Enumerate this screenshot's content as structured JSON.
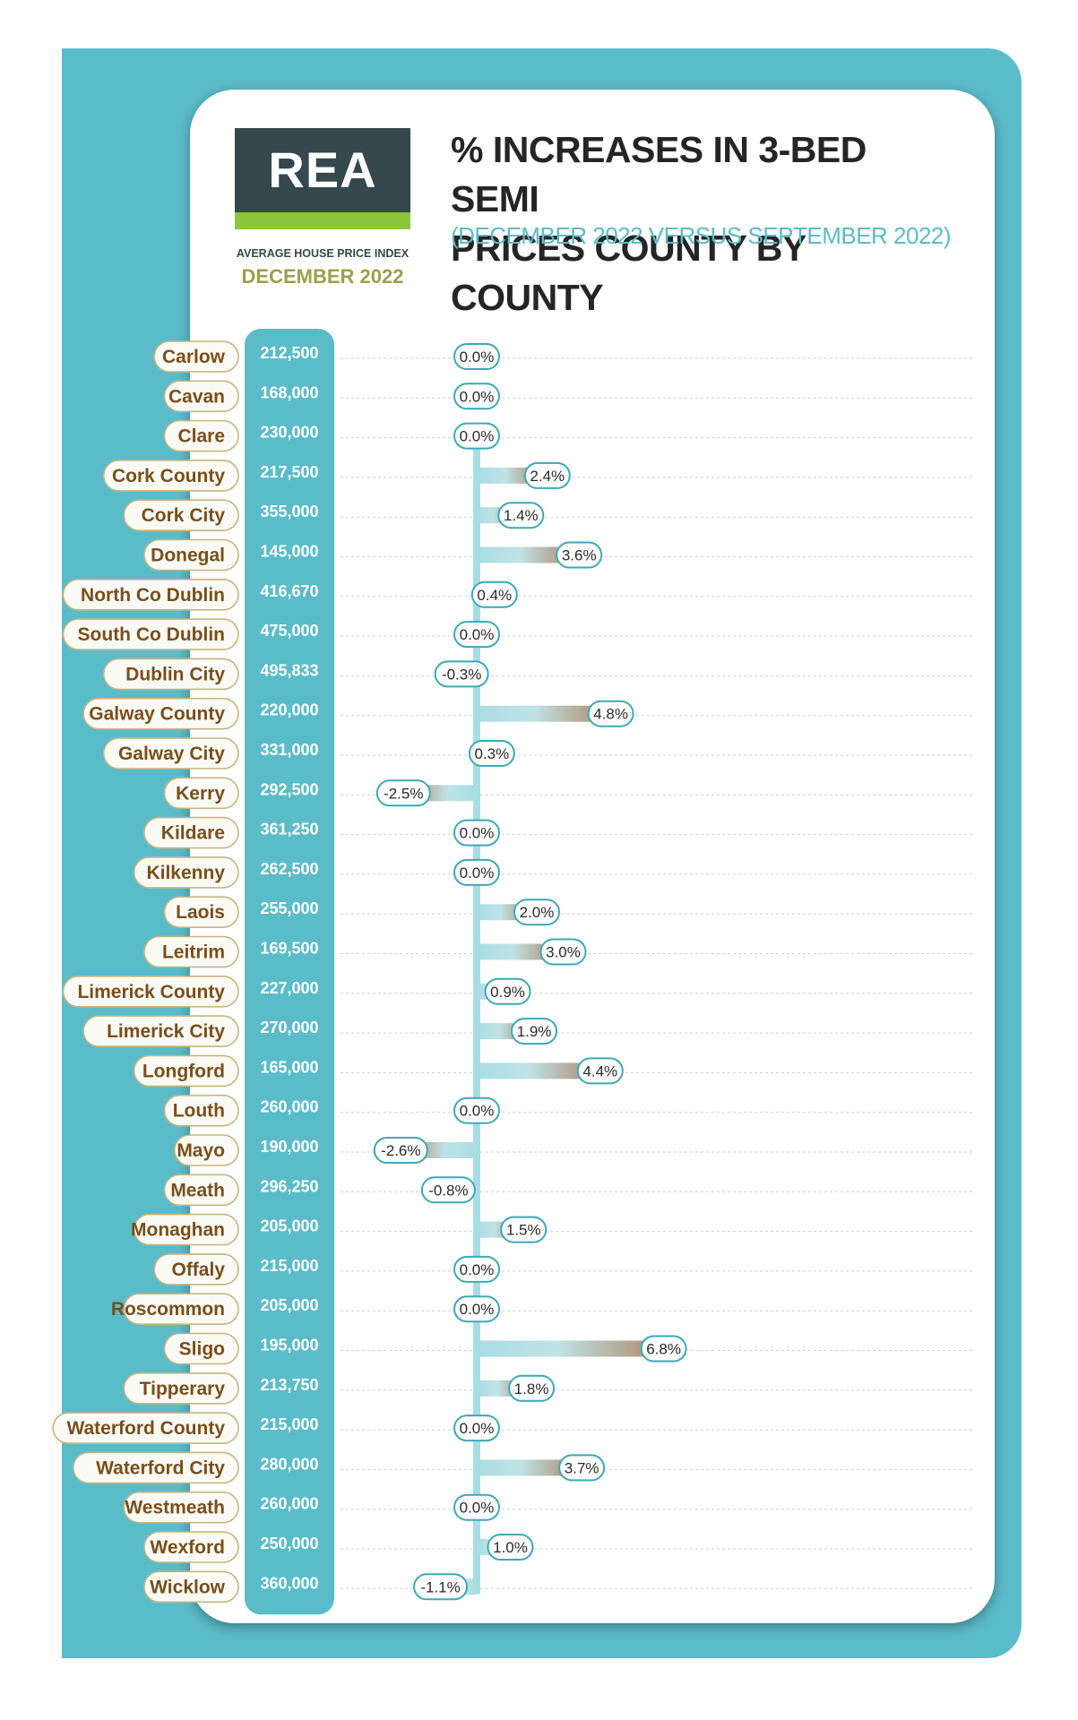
{
  "logo": {
    "text": "REA"
  },
  "header": {
    "index_label": "AVERAGE HOUSE PRICE INDEX",
    "month_label": "DECEMBER 2022",
    "title_line1": "% INCREASES IN 3-BED SEMI",
    "title_line2": "PRICES COUNTY BY COUNTY",
    "subtitle": "(DECEMBER 2022 VERSUS SEPTEMBER 2022)"
  },
  "colors": {
    "teal": "#5bbcc9",
    "bar_light": "#a8dde4",
    "bar_brown": "#b59a82",
    "label_brown": "#7a4e1a",
    "logo_dark": "#34484d",
    "logo_green": "#8cc63f"
  },
  "chart_data": {
    "type": "bar",
    "orientation": "horizontal",
    "title": "% INCREASES IN 3-BED SEMI PRICES COUNTY BY COUNTY",
    "subtitle": "(DECEMBER 2022 VERSUS SEPTEMBER 2022)",
    "categories": [
      "Carlow",
      "Cavan",
      "Clare",
      "Cork County",
      "Cork City",
      "Donegal",
      "North Co Dublin",
      "South Co Dublin",
      "Dublin City",
      "Galway County",
      "Galway City",
      "Kerry",
      "Kildare",
      "Kilkenny",
      "Laois",
      "Leitrim",
      "Limerick County",
      "Limerick City",
      "Longford",
      "Louth",
      "Mayo",
      "Meath",
      "Monaghan",
      "Offaly",
      "Roscommon",
      "Sligo",
      "Tipperary",
      "Waterford County",
      "Waterford City",
      "Westmeath",
      "Wexford",
      "Wicklow"
    ],
    "prices": [
      "212,500",
      "168,000",
      "230,000",
      "217,500",
      "355,000",
      "145,000",
      "416,670",
      "475,000",
      "495,833",
      "220,000",
      "331,000",
      "292,500",
      "361,250",
      "262,500",
      "255,000",
      "169,500",
      "227,000",
      "270,000",
      "165,000",
      "260,000",
      "190,000",
      "296,250",
      "205,000",
      "215,000",
      "205,000",
      "195,000",
      "213,750",
      "215,000",
      "280,000",
      "260,000",
      "250,000",
      "360,000"
    ],
    "values": [
      0.0,
      0.0,
      0.0,
      2.4,
      1.4,
      3.6,
      0.4,
      0.0,
      -0.3,
      4.8,
      0.3,
      -2.5,
      0.0,
      0.0,
      2.0,
      3.0,
      0.9,
      1.9,
      4.4,
      0.0,
      -2.6,
      -0.8,
      1.5,
      0.0,
      0.0,
      6.8,
      1.8,
      0.0,
      3.7,
      0.0,
      1.0,
      -1.1
    ],
    "value_labels": [
      "0.0%",
      "0.0%",
      "0.0%",
      "2.4%",
      "1.4%",
      "3.6%",
      "0.4%",
      "0.0%",
      "-0.3%",
      "4.8%",
      "0.3%",
      "-2.5%",
      "0.0%",
      "0.0%",
      "2.0%",
      "3.0%",
      "0.9%",
      "1.9%",
      "4.4%",
      "0.0%",
      "-2.6%",
      "-0.8%",
      "1.5%",
      "0.0%",
      "0.0%",
      "6.8%",
      "1.8%",
      "0.0%",
      "3.7%",
      "0.0%",
      "1.0%",
      "-1.1%"
    ],
    "grid": true
  }
}
